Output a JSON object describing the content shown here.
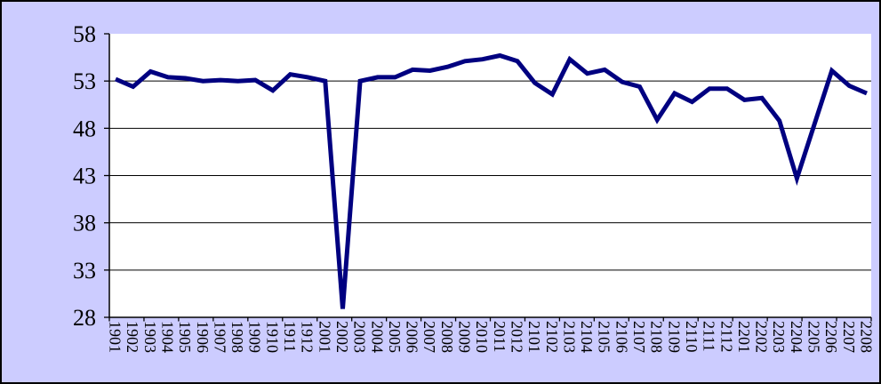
{
  "window": {
    "background_color": "#CCCCFF",
    "frame_border_color": "#000000"
  },
  "chart_data": {
    "type": "line",
    "title": "",
    "categories": [
      "1901",
      "1902",
      "1903",
      "1904",
      "1905",
      "1906",
      "1907",
      "1908",
      "1909",
      "1910",
      "1911",
      "1912",
      "2001",
      "2002",
      "2003",
      "2004",
      "2005",
      "2006",
      "2007",
      "2008",
      "2009",
      "2010",
      "2011",
      "2012",
      "2101",
      "2102",
      "2103",
      "2104",
      "2105",
      "2106",
      "2107",
      "2108",
      "2109",
      "2110",
      "2111",
      "2112",
      "2201",
      "2202",
      "2203",
      "2204",
      "2205",
      "2206",
      "2207",
      "2208"
    ],
    "values": [
      53.2,
      52.4,
      54.0,
      53.4,
      53.3,
      53.0,
      53.1,
      53.0,
      53.1,
      52.0,
      53.7,
      53.4,
      53.0,
      28.9,
      53.0,
      53.4,
      53.4,
      54.2,
      54.1,
      54.5,
      55.1,
      55.3,
      55.7,
      55.1,
      52.8,
      51.6,
      55.3,
      53.8,
      54.2,
      52.9,
      52.4,
      48.9,
      51.7,
      50.8,
      52.2,
      52.2,
      51.0,
      51.2,
      48.8,
      42.7,
      48.4,
      54.1,
      52.5,
      51.7
    ],
    "xlabel": "",
    "ylabel": "",
    "ylim": [
      28,
      58
    ],
    "y_ticks": [
      58,
      53,
      48,
      43,
      38,
      33,
      28
    ],
    "x_tick_every": 2,
    "grid": "horizontal",
    "legend": "none",
    "line_color": "#000080",
    "plot_background": "#FFFFFF",
    "axis_color": "#000000",
    "label_color": "#000000"
  }
}
